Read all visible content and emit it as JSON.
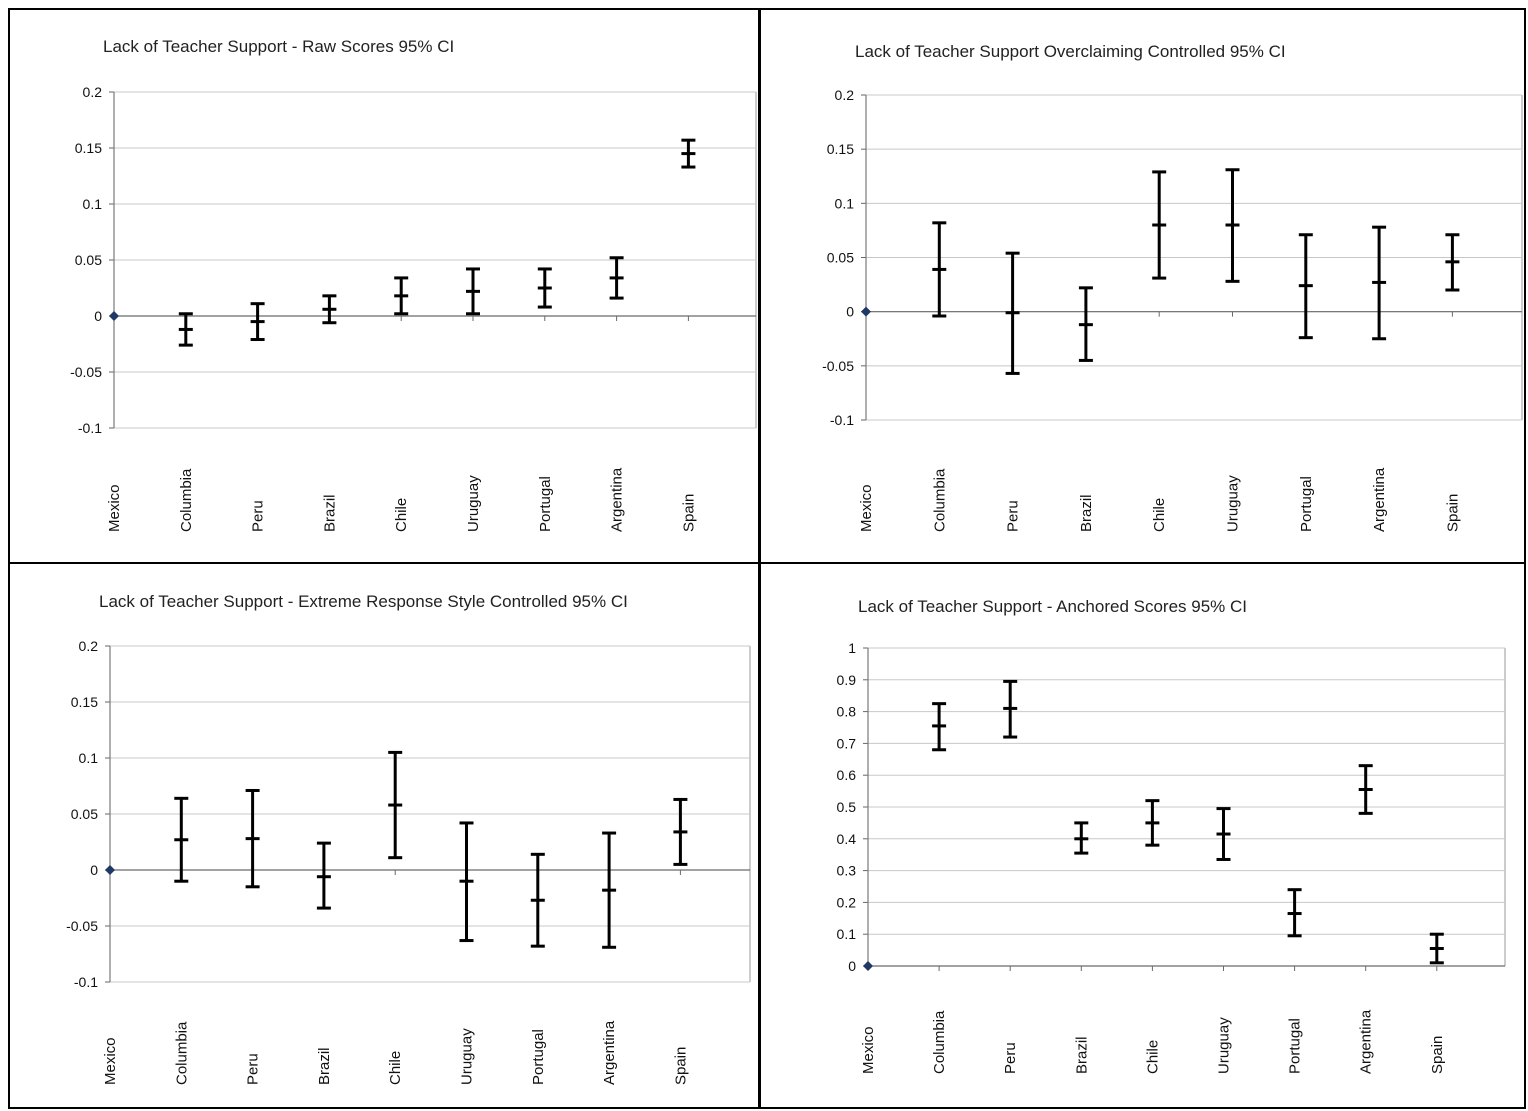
{
  "chart_data": [
    {
      "type": "errorbar",
      "title": "Lack of Teacher Support  -  Raw Scores  95% CI",
      "categories": [
        "Mexico",
        "Columbia",
        "Peru",
        "Brazil",
        "Chile",
        "Uruguay",
        "Portugal",
        "Argentina",
        "Spain"
      ],
      "center": [
        0,
        -0.012,
        -0.005,
        0.006,
        0.018,
        0.022,
        0.025,
        0.034,
        0.145
      ],
      "lower": [
        0,
        -0.026,
        -0.021,
        -0.006,
        0.002,
        0.002,
        0.008,
        0.016,
        0.133
      ],
      "upper": [
        0,
        0.002,
        0.011,
        0.018,
        0.034,
        0.042,
        0.042,
        0.052,
        0.157
      ],
      "ylim": [
        -0.1,
        0.2
      ],
      "yticks": [
        "0.2",
        "0.15",
        "0.1",
        "0.05",
        "0",
        "-0.05",
        "-0.1"
      ],
      "grid": true
    },
    {
      "type": "errorbar",
      "title": "Lack of Teacher Support   Overclaiming Controlled  95% CI",
      "categories": [
        "Mexico",
        "Columbia",
        "Peru",
        "Brazil",
        "Chile",
        "Uruguay",
        "Portugal",
        "Argentina",
        "Spain"
      ],
      "center": [
        0,
        0.039,
        -0.001,
        -0.012,
        0.08,
        0.08,
        0.024,
        0.027,
        0.046
      ],
      "lower": [
        0,
        -0.004,
        -0.057,
        -0.045,
        0.031,
        0.028,
        -0.024,
        -0.025,
        0.02
      ],
      "upper": [
        0,
        0.082,
        0.054,
        0.022,
        0.129,
        0.131,
        0.071,
        0.078,
        0.071
      ],
      "ylim": [
        -0.1,
        0.2
      ],
      "yticks": [
        "0.2",
        "0.15",
        "0.1",
        "0.05",
        "0",
        "-0.05",
        "-0.1"
      ],
      "grid": true
    },
    {
      "type": "errorbar",
      "title": "Lack of Teacher Support  -  Extreme Response Style Controlled  95% CI",
      "categories": [
        "Mexico",
        "Columbia",
        "Peru",
        "Brazil",
        "Chile",
        "Uruguay",
        "Portugal",
        "Argentina",
        "Spain"
      ],
      "center": [
        0,
        0.027,
        0.028,
        -0.006,
        0.058,
        -0.01,
        -0.027,
        -0.018,
        0.034
      ],
      "lower": [
        0,
        -0.01,
        -0.015,
        -0.034,
        0.011,
        -0.063,
        -0.068,
        -0.069,
        0.005
      ],
      "upper": [
        0,
        0.064,
        0.071,
        0.024,
        0.105,
        0.042,
        0.014,
        0.033,
        0.063
      ],
      "ylim": [
        -0.1,
        0.2
      ],
      "yticks": [
        "0.2",
        "0.15",
        "0.1",
        "0.05",
        "0",
        "-0.05",
        "-0.1"
      ],
      "grid": true
    },
    {
      "type": "errorbar",
      "title": "Lack of Teacher Support  -  Anchored Scores  95% CI",
      "categories": [
        "Mexico",
        "Columbia",
        "Peru",
        "Brazil",
        "Chile",
        "Uruguay",
        "Portugal",
        "Argentina",
        "Spain"
      ],
      "center": [
        0,
        0.755,
        0.81,
        0.4,
        0.45,
        0.415,
        0.165,
        0.555,
        0.055
      ],
      "lower": [
        0,
        0.68,
        0.72,
        0.355,
        0.38,
        0.335,
        0.095,
        0.48,
        0.01
      ],
      "upper": [
        0,
        0.825,
        0.895,
        0.45,
        0.52,
        0.495,
        0.24,
        0.63,
        0.1
      ],
      "ylim": [
        0,
        1
      ],
      "yticks": [
        "1",
        "0.9",
        "0.8",
        "0.7",
        "0.6",
        "0.5",
        "0.4",
        "0.3",
        "0.2",
        "0.1",
        "0"
      ],
      "grid": true
    }
  ],
  "colors": {
    "marker": "#1f3864",
    "bars": "#000000",
    "grid": "#c8c8c8"
  }
}
